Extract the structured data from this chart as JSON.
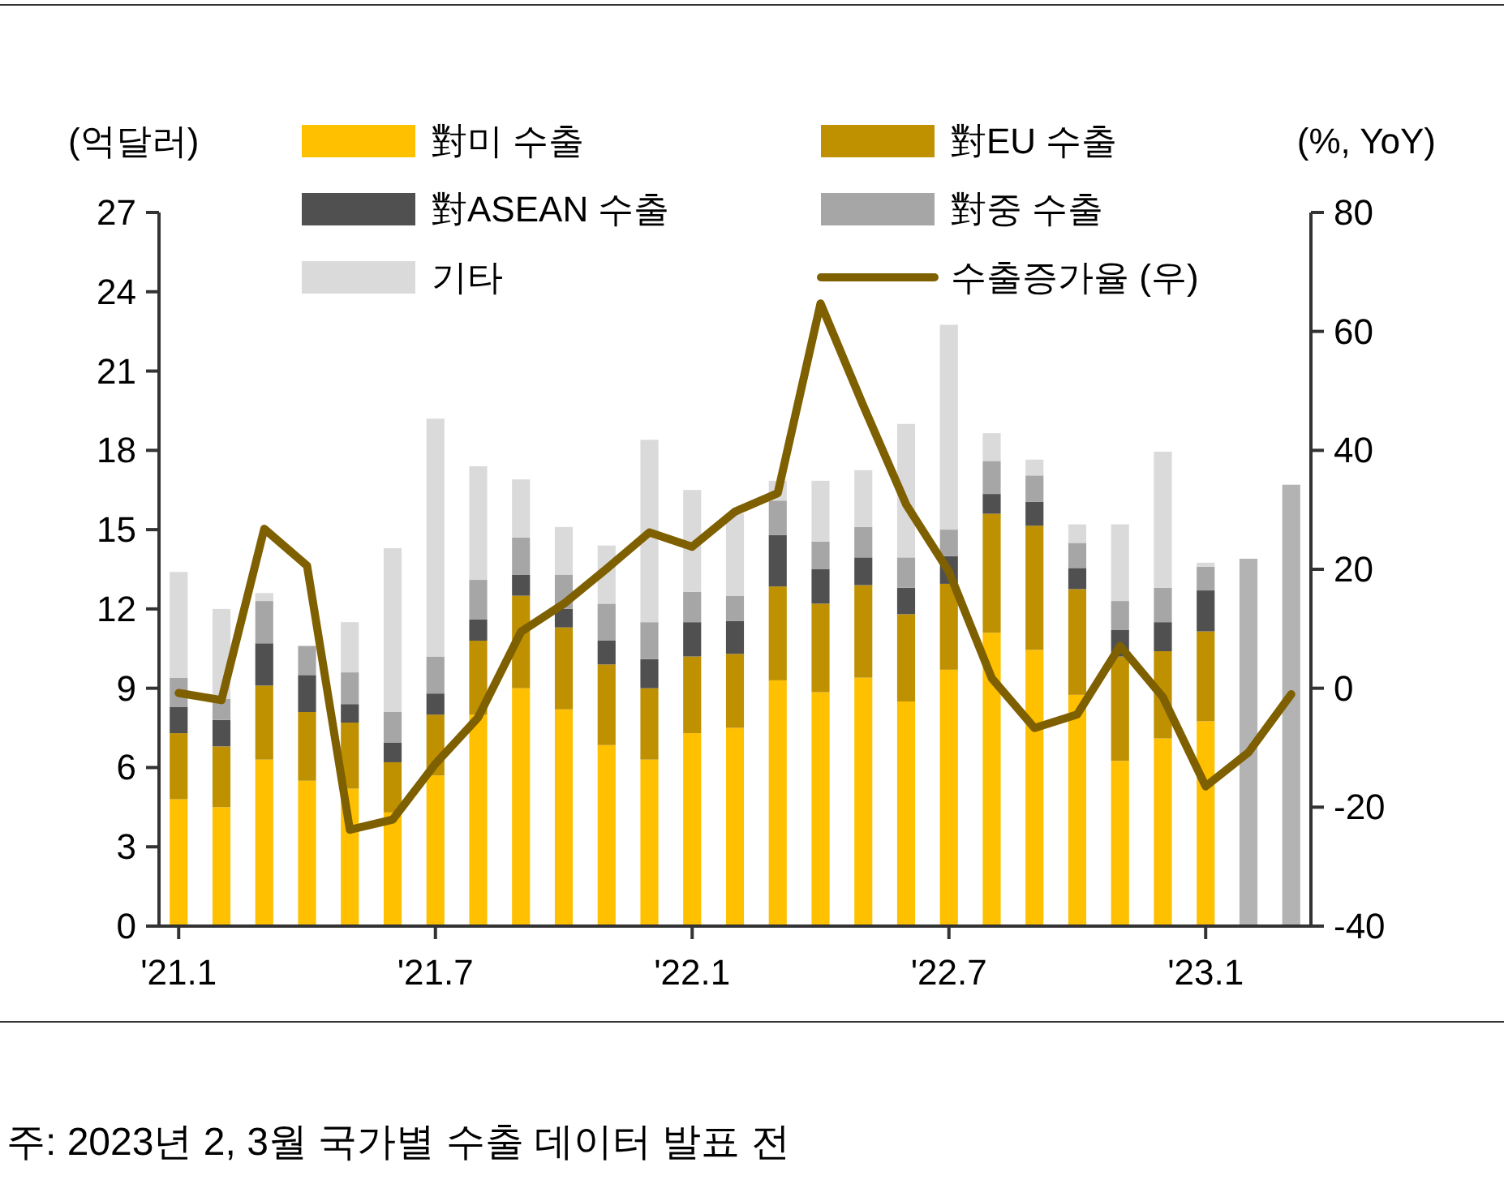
{
  "chart_data": {
    "type": "bar",
    "stacked": true,
    "legend": "top",
    "ylabel": "(억달러)",
    "y2label": "(%, YoY)",
    "categories": [
      "'21.1",
      null,
      null,
      null,
      null,
      null,
      "'21.7",
      null,
      null,
      null,
      null,
      null,
      "'22.1",
      null,
      null,
      null,
      null,
      null,
      "'22.7",
      null,
      null,
      null,
      null,
      null,
      "'23.1",
      null,
      null
    ],
    "ylim": [
      0,
      27
    ],
    "yticks": [
      0,
      3,
      6,
      9,
      12,
      15,
      18,
      21,
      24,
      27
    ],
    "y2lim": [
      -40,
      80
    ],
    "y2ticks": [
      -40,
      -20,
      0,
      20,
      40,
      60,
      80
    ],
    "series": [
      {
        "name": "對미 수출",
        "color": "#ffc000",
        "values": [
          4.8,
          4.5,
          6.3,
          5.5,
          5.2,
          4.3,
          5.7,
          8.0,
          9.0,
          8.2,
          6.85,
          6.3,
          7.3,
          7.5,
          9.3,
          8.85,
          9.4,
          8.5,
          9.7,
          11.1,
          10.45,
          8.75,
          6.25,
          7.1,
          7.75,
          null,
          null
        ]
      },
      {
        "name": "對EU 수출",
        "color": "#bf9000",
        "values": [
          2.5,
          2.3,
          2.8,
          2.6,
          2.5,
          1.9,
          2.3,
          2.8,
          3.5,
          3.1,
          3.05,
          2.7,
          2.9,
          2.8,
          3.55,
          3.35,
          3.5,
          3.3,
          3.25,
          4.5,
          4.7,
          4.0,
          3.95,
          3.3,
          3.4,
          null,
          null
        ]
      },
      {
        "name": "對ASEAN 수출",
        "color": "#505050",
        "values": [
          1.0,
          1.0,
          1.6,
          1.4,
          0.7,
          0.75,
          0.8,
          0.8,
          0.8,
          0.7,
          0.9,
          1.1,
          1.3,
          1.25,
          1.95,
          1.3,
          1.05,
          1.0,
          1.05,
          0.75,
          0.9,
          0.8,
          1.0,
          1.1,
          1.55,
          null,
          null
        ]
      },
      {
        "name": "對중 수출",
        "color": "#a6a6a6",
        "values": [
          1.1,
          0.8,
          1.6,
          1.1,
          1.2,
          1.15,
          1.4,
          1.5,
          1.4,
          1.3,
          1.4,
          1.4,
          1.15,
          0.95,
          1.3,
          1.05,
          1.15,
          1.15,
          1.0,
          1.25,
          1.0,
          0.95,
          1.1,
          1.3,
          0.9,
          null,
          null
        ]
      },
      {
        "name": "기타",
        "color": "#dadada",
        "values": [
          4.0,
          3.4,
          0.3,
          0,
          1.9,
          6.2,
          9.0,
          4.3,
          2.2,
          1.8,
          2.2,
          6.9,
          3.85,
          3.1,
          0.75,
          2.3,
          2.15,
          5.05,
          7.75,
          1.05,
          0.6,
          0.7,
          2.9,
          5.15,
          0.15,
          null,
          null
        ]
      },
      {
        "color": "#b3b3b3",
        "values": [
          null,
          null,
          null,
          null,
          null,
          null,
          null,
          null,
          null,
          null,
          null,
          null,
          null,
          null,
          null,
          null,
          null,
          null,
          null,
          null,
          null,
          null,
          null,
          null,
          null,
          13.9,
          16.7
        ]
      },
      {
        "name": "수출증가율 (우)",
        "type": "line",
        "axis": "y2",
        "color": "#7f6000",
        "values": [
          -0.8,
          -2.0,
          26.8,
          20.6,
          -23.8,
          -22.1,
          -12.7,
          -4.9,
          9.5,
          14.2,
          20.1,
          26.2,
          23.8,
          29.7,
          32.8,
          64.7,
          47.5,
          30.9,
          19.6,
          1.7,
          -6.7,
          -4.4,
          7.1,
          -1.5,
          -16.5,
          -10.8,
          -1.0
        ]
      }
    ],
    "annotations": [
      "주: 2023년 2, 3월 국가별 수출 데이터 발표 전"
    ]
  }
}
